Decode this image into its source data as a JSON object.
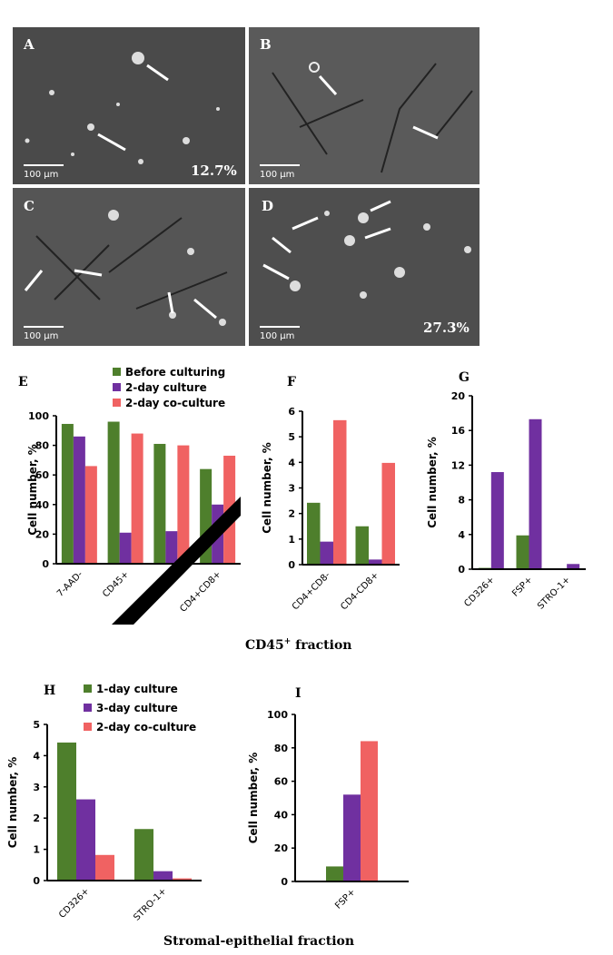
{
  "micrographs": [
    {
      "label": "A",
      "scale": "100 µm",
      "percent": "12.7%"
    },
    {
      "label": "B",
      "scale": "100 µm",
      "percent": ""
    },
    {
      "label": "C",
      "scale": "100 µm",
      "percent": ""
    },
    {
      "label": "D",
      "scale": "100 µm",
      "percent": "27.3%"
    }
  ],
  "section_titles": {
    "cd45": "CD45",
    "cd45_sup": "+",
    "cd45_rest": " fraction",
    "stromal": "Stromal-epithelial fraction"
  },
  "colors": {
    "green": "#4e7f2c",
    "purple": "#7030a0",
    "red": "#f06262"
  },
  "chart_data": [
    {
      "panel": "E",
      "type": "bar",
      "ylabel": "Cell number, %",
      "ylim": [
        0,
        100
      ],
      "yticks": [
        0,
        20,
        40,
        60,
        80,
        100
      ],
      "categories": [
        "7-AAD-",
        "CD45+",
        "",
        "CD4+CD8+"
      ],
      "series": [
        {
          "name": "Before culturing",
          "color": "green",
          "values": [
            94.5,
            96,
            81,
            64
          ]
        },
        {
          "name": "2-day culture",
          "color": "purple",
          "values": [
            86,
            21,
            22,
            40
          ]
        },
        {
          "name": "2-day co-culture",
          "color": "red",
          "values": [
            66,
            88,
            80,
            73
          ]
        }
      ],
      "legend": "top"
    },
    {
      "panel": "F",
      "type": "bar",
      "ylabel": "Cell number, %",
      "ylim": [
        0,
        6
      ],
      "yticks": [
        0,
        1,
        2,
        3,
        4,
        5,
        6
      ],
      "categories": [
        "CD4+CD8-",
        "CD4-CD8+"
      ],
      "series": [
        {
          "name": "Before culturing",
          "color": "green",
          "values": [
            2.42,
            1.5
          ]
        },
        {
          "name": "2-day culture",
          "color": "purple",
          "values": [
            0.9,
            0.2
          ]
        },
        {
          "name": "2-day co-culture",
          "color": "red",
          "values": [
            5.65,
            3.98
          ]
        }
      ]
    },
    {
      "panel": "G",
      "type": "bar",
      "ylabel": "Cell number, %",
      "ylim": [
        0,
        20
      ],
      "yticks": [
        0,
        4,
        8,
        12,
        16,
        20
      ],
      "categories": [
        "CD326+",
        "FSP+",
        "STRO-1+"
      ],
      "series": [
        {
          "name": "Before culturing",
          "color": "green",
          "values": [
            0.15,
            3.9,
            0
          ]
        },
        {
          "name": "2-day culture",
          "color": "purple",
          "values": [
            11.2,
            17.3,
            0.6
          ]
        }
      ]
    },
    {
      "panel": "H",
      "type": "bar",
      "ylabel": "Cell number, %",
      "ylim": [
        0,
        5
      ],
      "yticks": [
        0,
        1,
        2,
        3,
        4,
        5
      ],
      "categories": [
        "CD326+",
        "STRO-1+"
      ],
      "series": [
        {
          "name": "1-day culture",
          "color": "green",
          "values": [
            4.42,
            1.65
          ]
        },
        {
          "name": "3-day culture",
          "color": "purple",
          "values": [
            2.6,
            0.3
          ]
        },
        {
          "name": "2-day co-culture",
          "color": "red",
          "values": [
            0.82,
            0.07
          ]
        }
      ],
      "legend": "top"
    },
    {
      "panel": "I",
      "type": "bar",
      "ylabel": "Cell number, %",
      "ylim": [
        0,
        100
      ],
      "yticks": [
        0,
        20,
        40,
        60,
        80,
        100
      ],
      "categories": [
        "FSP+"
      ],
      "series": [
        {
          "name": "1-day culture",
          "color": "green",
          "values": [
            9
          ]
        },
        {
          "name": "3-day culture",
          "color": "purple",
          "values": [
            52
          ]
        },
        {
          "name": "2-day co-culture",
          "color": "red",
          "values": [
            84
          ]
        }
      ]
    }
  ]
}
